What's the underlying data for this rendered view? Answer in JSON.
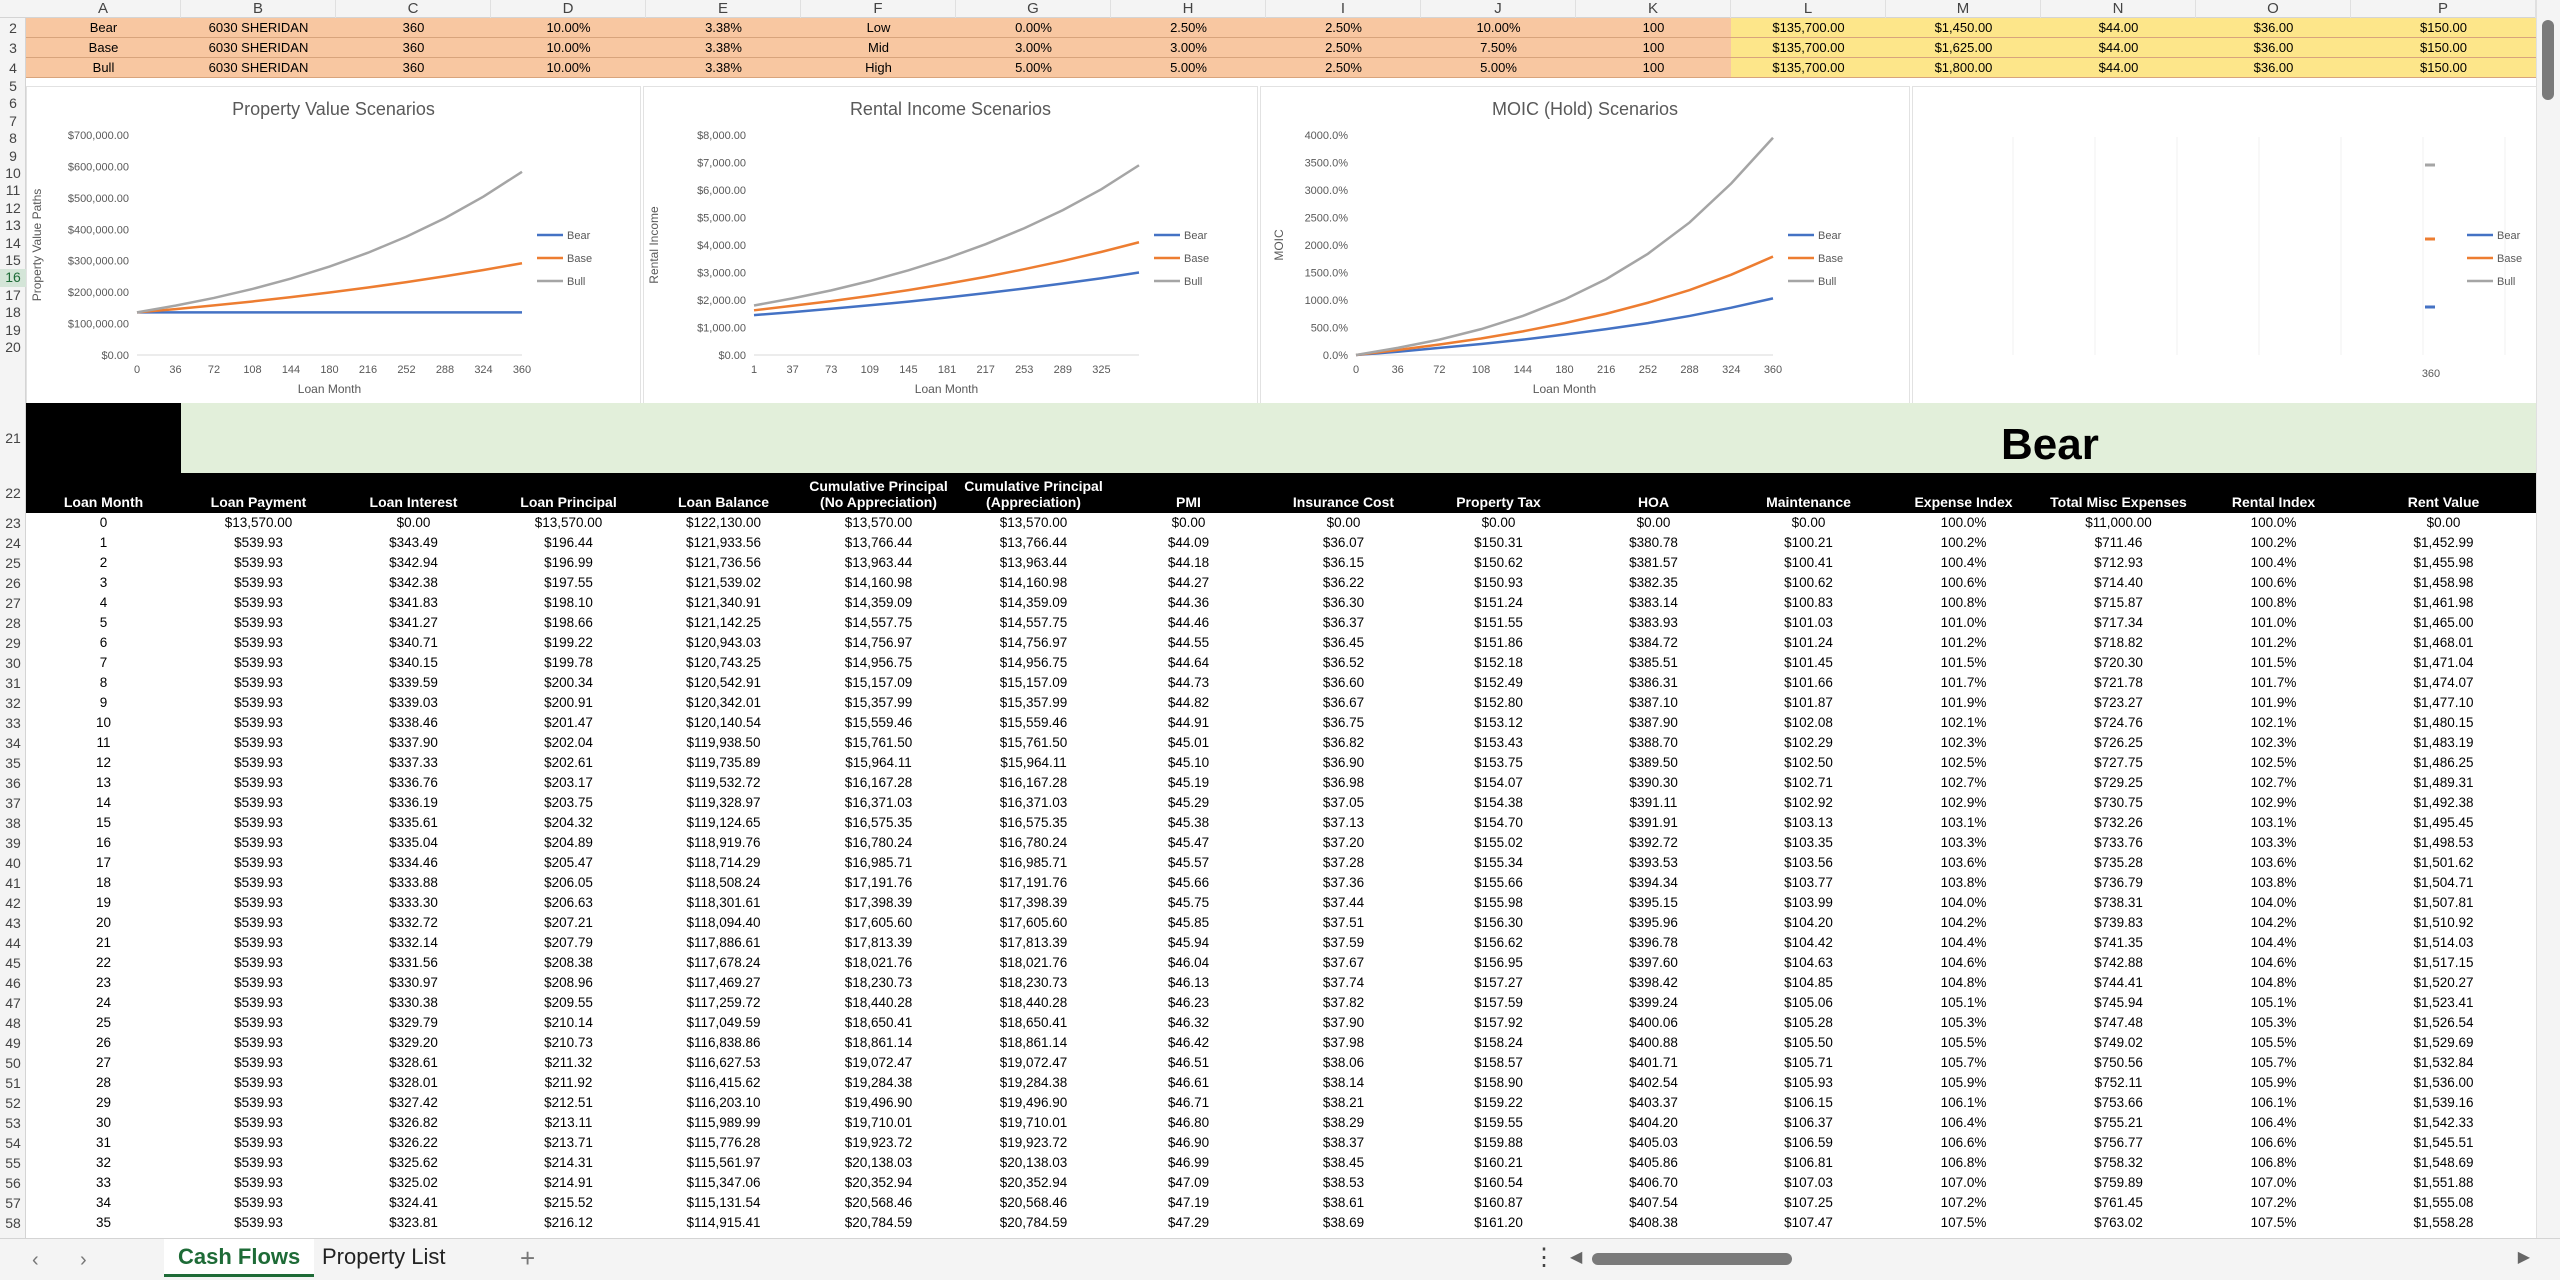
{
  "columns": [
    "A",
    "B",
    "C",
    "D",
    "E",
    "F",
    "G",
    "H",
    "I",
    "J",
    "K",
    "L",
    "M",
    "N",
    "O",
    "P"
  ],
  "rows": [
    2,
    3,
    4,
    5,
    6,
    7,
    8,
    9,
    10,
    11,
    12,
    13,
    14,
    15,
    16,
    17,
    18,
    19,
    20,
    21,
    22,
    23,
    24,
    25,
    26,
    27,
    28,
    29,
    30,
    31,
    32,
    33,
    34,
    35,
    36,
    37,
    38,
    39,
    40,
    41,
    42,
    43,
    44,
    45,
    46,
    47,
    48,
    49,
    50,
    51,
    52,
    53,
    54,
    55,
    56,
    57,
    58
  ],
  "selected_row": 16,
  "scenarios": [
    [
      "Bear",
      "6030 SHERIDAN",
      "360",
      "10.00%",
      "3.38%",
      "Low",
      "0.00%",
      "2.50%",
      "2.50%",
      "10.00%",
      "100",
      "$135,700.00",
      "$1,450.00",
      "$44.00",
      "$36.00",
      "$150.00"
    ],
    [
      "Base",
      "6030 SHERIDAN",
      "360",
      "10.00%",
      "3.38%",
      "Mid",
      "3.00%",
      "3.00%",
      "2.50%",
      "7.50%",
      "100",
      "$135,700.00",
      "$1,625.00",
      "$44.00",
      "$36.00",
      "$150.00"
    ],
    [
      "Bull",
      "6030 SHERIDAN",
      "360",
      "10.00%",
      "3.38%",
      "High",
      "5.00%",
      "5.00%",
      "2.50%",
      "5.00%",
      "100",
      "$135,700.00",
      "$1,800.00",
      "$44.00",
      "$36.00",
      "$150.00"
    ]
  ],
  "colors": {
    "bear": "#4472c4",
    "base": "#ed7d31",
    "bull": "#a5a5a5",
    "scenario_bg": "#f8c7a1",
    "scenario_yellow": "#fde68a",
    "band_green": "#e2efda",
    "header_black": "#000000",
    "accent": "#1e6b37"
  },
  "chart_data": [
    {
      "type": "line",
      "title": "Property Value Scenarios",
      "xlabel": "Loan Month",
      "ylabel": "Property Value Paths",
      "xticks": [
        "0",
        "36",
        "72",
        "108",
        "144",
        "180",
        "216",
        "252",
        "288",
        "324",
        "360"
      ],
      "yticks": [
        "$0.00",
        "$100,000.00",
        "$200,000.00",
        "$300,000.00",
        "$400,000.00",
        "$500,000.00",
        "$600,000.00",
        "$700,000.00"
      ],
      "ylim": [
        0,
        700000
      ],
      "x": [
        0,
        36,
        72,
        108,
        144,
        180,
        216,
        252,
        288,
        324,
        360
      ],
      "series": [
        {
          "name": "Bear",
          "values": [
            135700,
            135700,
            135700,
            135700,
            135700,
            135700,
            135700,
            135700,
            135700,
            135700,
            135700
          ]
        },
        {
          "name": "Base",
          "values": [
            135700,
            146100,
            157800,
            170400,
            184000,
            198800,
            214700,
            231900,
            250500,
            270500,
            292000
          ]
        },
        {
          "name": "Bull",
          "values": [
            135700,
            157000,
            181600,
            210200,
            243200,
            281300,
            325400,
            376500,
            435600,
            504000,
            583000
          ]
        }
      ]
    },
    {
      "type": "line",
      "title": "Rental Income Scenarios",
      "xlabel": "Loan Month",
      "ylabel": "Rental Income",
      "xticks": [
        "1",
        "37",
        "73",
        "109",
        "145",
        "181",
        "217",
        "253",
        "289",
        "325"
      ],
      "yticks": [
        "$0.00",
        "$1,000.00",
        "$2,000.00",
        "$3,000.00",
        "$4,000.00",
        "$5,000.00",
        "$6,000.00",
        "$7,000.00",
        "$8,000.00"
      ],
      "ylim": [
        0,
        8000
      ],
      "x": [
        1,
        37,
        73,
        109,
        145,
        181,
        217,
        253,
        289,
        325,
        360
      ],
      "series": [
        {
          "name": "Bear",
          "values": [
            1450,
            1560,
            1680,
            1810,
            1940,
            2090,
            2250,
            2420,
            2600,
            2790,
            3000
          ]
        },
        {
          "name": "Base",
          "values": [
            1625,
            1790,
            1960,
            2150,
            2360,
            2590,
            2840,
            3120,
            3420,
            3750,
            4100
          ]
        },
        {
          "name": "Bull",
          "values": [
            1800,
            2060,
            2350,
            2690,
            3080,
            3520,
            4030,
            4610,
            5270,
            6030,
            6900
          ]
        }
      ]
    },
    {
      "type": "line",
      "title": "MOIC (Hold) Scenarios",
      "xlabel": "Loan Month",
      "ylabel": "MOIC",
      "xticks": [
        "0",
        "36",
        "72",
        "108",
        "144",
        "180",
        "216",
        "252",
        "288",
        "324",
        "360"
      ],
      "yticks": [
        "0.0%",
        "500.0%",
        "1000.0%",
        "1500.0%",
        "2000.0%",
        "2500.0%",
        "3000.0%",
        "3500.0%",
        "4000.0%"
      ],
      "ylim": [
        0,
        4000
      ],
      "x": [
        0,
        36,
        72,
        108,
        144,
        180,
        216,
        252,
        288,
        324,
        360
      ],
      "series": [
        {
          "name": "Bear",
          "values": [
            0,
            60,
            130,
            200,
            280,
            370,
            470,
            580,
            710,
            860,
            1030
          ]
        },
        {
          "name": "Base",
          "values": [
            0,
            90,
            190,
            300,
            430,
            580,
            750,
            950,
            1180,
            1460,
            1790
          ]
        },
        {
          "name": "Bull",
          "values": [
            0,
            130,
            280,
            470,
            710,
            1010,
            1380,
            1840,
            2410,
            3120,
            3950
          ]
        }
      ]
    }
  ],
  "chart4": {
    "xtick": "360",
    "legend": [
      "Bear",
      "Base",
      "Bull"
    ]
  },
  "scenario_title": "Bear",
  "table_headers": [
    "Loan Month",
    "Loan Payment",
    "Loan Interest",
    "Loan Principal",
    "Loan Balance",
    "Cumulative Principal\n(No Appreciation)",
    "Cumulative Principal\n(Appreciation)",
    "PMI",
    "Insurance Cost",
    "Property Tax",
    "HOA",
    "Maintenance",
    "Expense Index",
    "Total Misc Expenses",
    "Rental Index",
    "Rent Value"
  ],
  "table_rows": [
    [
      "0",
      "$13,570.00",
      "$0.00",
      "$13,570.00",
      "$122,130.00",
      "$13,570.00",
      "$13,570.00",
      "$0.00",
      "$0.00",
      "$0.00",
      "$0.00",
      "$0.00",
      "100.0%",
      "$11,000.00",
      "100.0%",
      "$0.00"
    ],
    [
      "1",
      "$539.93",
      "$343.49",
      "$196.44",
      "$121,933.56",
      "$13,766.44",
      "$13,766.44",
      "$44.09",
      "$36.07",
      "$150.31",
      "$380.78",
      "$100.21",
      "100.2%",
      "$711.46",
      "100.2%",
      "$1,452.99"
    ],
    [
      "2",
      "$539.93",
      "$342.94",
      "$196.99",
      "$121,736.56",
      "$13,963.44",
      "$13,963.44",
      "$44.18",
      "$36.15",
      "$150.62",
      "$381.57",
      "$100.41",
      "100.4%",
      "$712.93",
      "100.4%",
      "$1,455.98"
    ],
    [
      "3",
      "$539.93",
      "$342.38",
      "$197.55",
      "$121,539.02",
      "$14,160.98",
      "$14,160.98",
      "$44.27",
      "$36.22",
      "$150.93",
      "$382.35",
      "$100.62",
      "100.6%",
      "$714.40",
      "100.6%",
      "$1,458.98"
    ],
    [
      "4",
      "$539.93",
      "$341.83",
      "$198.10",
      "$121,340.91",
      "$14,359.09",
      "$14,359.09",
      "$44.36",
      "$36.30",
      "$151.24",
      "$383.14",
      "$100.83",
      "100.8%",
      "$715.87",
      "100.8%",
      "$1,461.98"
    ],
    [
      "5",
      "$539.93",
      "$341.27",
      "$198.66",
      "$121,142.25",
      "$14,557.75",
      "$14,557.75",
      "$44.46",
      "$36.37",
      "$151.55",
      "$383.93",
      "$101.03",
      "101.0%",
      "$717.34",
      "101.0%",
      "$1,465.00"
    ],
    [
      "6",
      "$539.93",
      "$340.71",
      "$199.22",
      "$120,943.03",
      "$14,756.97",
      "$14,756.97",
      "$44.55",
      "$36.45",
      "$151.86",
      "$384.72",
      "$101.24",
      "101.2%",
      "$718.82",
      "101.2%",
      "$1,468.01"
    ],
    [
      "7",
      "$539.93",
      "$340.15",
      "$199.78",
      "$120,743.25",
      "$14,956.75",
      "$14,956.75",
      "$44.64",
      "$36.52",
      "$152.18",
      "$385.51",
      "$101.45",
      "101.5%",
      "$720.30",
      "101.5%",
      "$1,471.04"
    ],
    [
      "8",
      "$539.93",
      "$339.59",
      "$200.34",
      "$120,542.91",
      "$15,157.09",
      "$15,157.09",
      "$44.73",
      "$36.60",
      "$152.49",
      "$386.31",
      "$101.66",
      "101.7%",
      "$721.78",
      "101.7%",
      "$1,474.07"
    ],
    [
      "9",
      "$539.93",
      "$339.03",
      "$200.91",
      "$120,342.01",
      "$15,357.99",
      "$15,357.99",
      "$44.82",
      "$36.67",
      "$152.80",
      "$387.10",
      "$101.87",
      "101.9%",
      "$723.27",
      "101.9%",
      "$1,477.10"
    ],
    [
      "10",
      "$539.93",
      "$338.46",
      "$201.47",
      "$120,140.54",
      "$15,559.46",
      "$15,559.46",
      "$44.91",
      "$36.75",
      "$153.12",
      "$387.90",
      "$102.08",
      "102.1%",
      "$724.76",
      "102.1%",
      "$1,480.15"
    ],
    [
      "11",
      "$539.93",
      "$337.90",
      "$202.04",
      "$119,938.50",
      "$15,761.50",
      "$15,761.50",
      "$45.01",
      "$36.82",
      "$153.43",
      "$388.70",
      "$102.29",
      "102.3%",
      "$726.25",
      "102.3%",
      "$1,483.19"
    ],
    [
      "12",
      "$539.93",
      "$337.33",
      "$202.61",
      "$119,735.89",
      "$15,964.11",
      "$15,964.11",
      "$45.10",
      "$36.90",
      "$153.75",
      "$389.50",
      "$102.50",
      "102.5%",
      "$727.75",
      "102.5%",
      "$1,486.25"
    ],
    [
      "13",
      "$539.93",
      "$336.76",
      "$203.17",
      "$119,532.72",
      "$16,167.28",
      "$16,167.28",
      "$45.19",
      "$36.98",
      "$154.07",
      "$390.30",
      "$102.71",
      "102.7%",
      "$729.25",
      "102.7%",
      "$1,489.31"
    ],
    [
      "14",
      "$539.93",
      "$336.19",
      "$203.75",
      "$119,328.97",
      "$16,371.03",
      "$16,371.03",
      "$45.29",
      "$37.05",
      "$154.38",
      "$391.11",
      "$102.92",
      "102.9%",
      "$730.75",
      "102.9%",
      "$1,492.38"
    ],
    [
      "15",
      "$539.93",
      "$335.61",
      "$204.32",
      "$119,124.65",
      "$16,575.35",
      "$16,575.35",
      "$45.38",
      "$37.13",
      "$154.70",
      "$391.91",
      "$103.13",
      "103.1%",
      "$732.26",
      "103.1%",
      "$1,495.45"
    ],
    [
      "16",
      "$539.93",
      "$335.04",
      "$204.89",
      "$118,919.76",
      "$16,780.24",
      "$16,780.24",
      "$45.47",
      "$37.20",
      "$155.02",
      "$392.72",
      "$103.35",
      "103.3%",
      "$733.76",
      "103.3%",
      "$1,498.53"
    ],
    [
      "17",
      "$539.93",
      "$334.46",
      "$205.47",
      "$118,714.29",
      "$16,985.71",
      "$16,985.71",
      "$45.57",
      "$37.28",
      "$155.34",
      "$393.53",
      "$103.56",
      "103.6%",
      "$735.28",
      "103.6%",
      "$1,501.62"
    ],
    [
      "18",
      "$539.93",
      "$333.88",
      "$206.05",
      "$118,508.24",
      "$17,191.76",
      "$17,191.76",
      "$45.66",
      "$37.36",
      "$155.66",
      "$394.34",
      "$103.77",
      "103.8%",
      "$736.79",
      "103.8%",
      "$1,504.71"
    ],
    [
      "19",
      "$539.93",
      "$333.30",
      "$206.63",
      "$118,301.61",
      "$17,398.39",
      "$17,398.39",
      "$45.75",
      "$37.44",
      "$155.98",
      "$395.15",
      "$103.99",
      "104.0%",
      "$738.31",
      "104.0%",
      "$1,507.81"
    ],
    [
      "20",
      "$539.93",
      "$332.72",
      "$207.21",
      "$118,094.40",
      "$17,605.60",
      "$17,605.60",
      "$45.85",
      "$37.51",
      "$156.30",
      "$395.96",
      "$104.20",
      "104.2%",
      "$739.83",
      "104.2%",
      "$1,510.92"
    ],
    [
      "21",
      "$539.93",
      "$332.14",
      "$207.79",
      "$117,886.61",
      "$17,813.39",
      "$17,813.39",
      "$45.94",
      "$37.59",
      "$156.62",
      "$396.78",
      "$104.42",
      "104.4%",
      "$741.35",
      "104.4%",
      "$1,514.03"
    ],
    [
      "22",
      "$539.93",
      "$331.56",
      "$208.38",
      "$117,678.24",
      "$18,021.76",
      "$18,021.76",
      "$46.04",
      "$37.67",
      "$156.95",
      "$397.60",
      "$104.63",
      "104.6%",
      "$742.88",
      "104.6%",
      "$1,517.15"
    ],
    [
      "23",
      "$539.93",
      "$330.97",
      "$208.96",
      "$117,469.27",
      "$18,230.73",
      "$18,230.73",
      "$46.13",
      "$37.74",
      "$157.27",
      "$398.42",
      "$104.85",
      "104.8%",
      "$744.41",
      "104.8%",
      "$1,520.27"
    ],
    [
      "24",
      "$539.93",
      "$330.38",
      "$209.55",
      "$117,259.72",
      "$18,440.28",
      "$18,440.28",
      "$46.23",
      "$37.82",
      "$157.59",
      "$399.24",
      "$105.06",
      "105.1%",
      "$745.94",
      "105.1%",
      "$1,523.41"
    ],
    [
      "25",
      "$539.93",
      "$329.79",
      "$210.14",
      "$117,049.59",
      "$18,650.41",
      "$18,650.41",
      "$46.32",
      "$37.90",
      "$157.92",
      "$400.06",
      "$105.28",
      "105.3%",
      "$747.48",
      "105.3%",
      "$1,526.54"
    ],
    [
      "26",
      "$539.93",
      "$329.20",
      "$210.73",
      "$116,838.86",
      "$18,861.14",
      "$18,861.14",
      "$46.42",
      "$37.98",
      "$158.24",
      "$400.88",
      "$105.50",
      "105.5%",
      "$749.02",
      "105.5%",
      "$1,529.69"
    ],
    [
      "27",
      "$539.93",
      "$328.61",
      "$211.32",
      "$116,627.53",
      "$19,072.47",
      "$19,072.47",
      "$46.51",
      "$38.06",
      "$158.57",
      "$401.71",
      "$105.71",
      "105.7%",
      "$750.56",
      "105.7%",
      "$1,532.84"
    ],
    [
      "28",
      "$539.93",
      "$328.01",
      "$211.92",
      "$116,415.62",
      "$19,284.38",
      "$19,284.38",
      "$46.61",
      "$38.14",
      "$158.90",
      "$402.54",
      "$105.93",
      "105.9%",
      "$752.11",
      "105.9%",
      "$1,536.00"
    ],
    [
      "29",
      "$539.93",
      "$327.42",
      "$212.51",
      "$116,203.10",
      "$19,496.90",
      "$19,496.90",
      "$46.71",
      "$38.21",
      "$159.22",
      "$403.37",
      "$106.15",
      "106.1%",
      "$753.66",
      "106.1%",
      "$1,539.16"
    ],
    [
      "30",
      "$539.93",
      "$326.82",
      "$213.11",
      "$115,989.99",
      "$19,710.01",
      "$19,710.01",
      "$46.80",
      "$38.29",
      "$159.55",
      "$404.20",
      "$106.37",
      "106.4%",
      "$755.21",
      "106.4%",
      "$1,542.33"
    ],
    [
      "31",
      "$539.93",
      "$326.22",
      "$213.71",
      "$115,776.28",
      "$19,923.72",
      "$19,923.72",
      "$46.90",
      "$38.37",
      "$159.88",
      "$405.03",
      "$106.59",
      "106.6%",
      "$756.77",
      "106.6%",
      "$1,545.51"
    ],
    [
      "32",
      "$539.93",
      "$325.62",
      "$214.31",
      "$115,561.97",
      "$20,138.03",
      "$20,138.03",
      "$46.99",
      "$38.45",
      "$160.21",
      "$405.86",
      "$106.81",
      "106.8%",
      "$758.32",
      "106.8%",
      "$1,548.69"
    ],
    [
      "33",
      "$539.93",
      "$325.02",
      "$214.91",
      "$115,347.06",
      "$20,352.94",
      "$20,352.94",
      "$47.09",
      "$38.53",
      "$160.54",
      "$406.70",
      "$107.03",
      "107.0%",
      "$759.89",
      "107.0%",
      "$1,551.88"
    ],
    [
      "34",
      "$539.93",
      "$324.41",
      "$215.52",
      "$115,131.54",
      "$20,568.46",
      "$20,568.46",
      "$47.19",
      "$38.61",
      "$160.87",
      "$407.54",
      "$107.25",
      "107.2%",
      "$761.45",
      "107.2%",
      "$1,555.08"
    ],
    [
      "35",
      "$539.93",
      "$323.81",
      "$216.12",
      "$114,915.41",
      "$20,784.59",
      "$20,784.59",
      "$47.29",
      "$38.69",
      "$161.20",
      "$408.38",
      "$107.47",
      "107.5%",
      "$763.02",
      "107.5%",
      "$1,558.28"
    ]
  ],
  "tabs": [
    {
      "label": "Cash Flows",
      "active": true
    },
    {
      "label": "Property List",
      "active": false
    }
  ],
  "nav": {
    "prev": "‹",
    "next": "›",
    "add": "+",
    "more": "⋮"
  }
}
